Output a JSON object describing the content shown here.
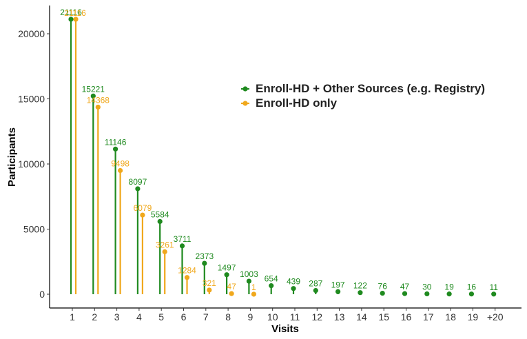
{
  "chart_data": {
    "type": "lollipop",
    "categories": [
      "1",
      "2",
      "3",
      "4",
      "5",
      "6",
      "7",
      "8",
      "9",
      "10",
      "11",
      "12",
      "13",
      "14",
      "15",
      "16",
      "17",
      "18",
      "19",
      "+20"
    ],
    "series": [
      {
        "name": "Enroll-HD + Other Sources (e.g. Registry)",
        "color": "#1f8a1f",
        "values": [
          21116,
          15221,
          11146,
          8097,
          5584,
          3711,
          2373,
          1497,
          1003,
          654,
          439,
          287,
          197,
          122,
          76,
          47,
          30,
          19,
          16,
          11
        ]
      },
      {
        "name": "Enroll-HD only",
        "color": "#f0a81c",
        "values": [
          21116,
          14368,
          9498,
          6079,
          3261,
          1284,
          321,
          47,
          1,
          null,
          null,
          null,
          null,
          null,
          null,
          null,
          null,
          null,
          null,
          null
        ]
      }
    ],
    "xlabel": "Visits",
    "ylabel": "Participants",
    "ylim": [
      0,
      22000
    ],
    "yticks": [
      0,
      5000,
      10000,
      15000,
      20000
    ],
    "legend_position": "right",
    "grid": false
  }
}
